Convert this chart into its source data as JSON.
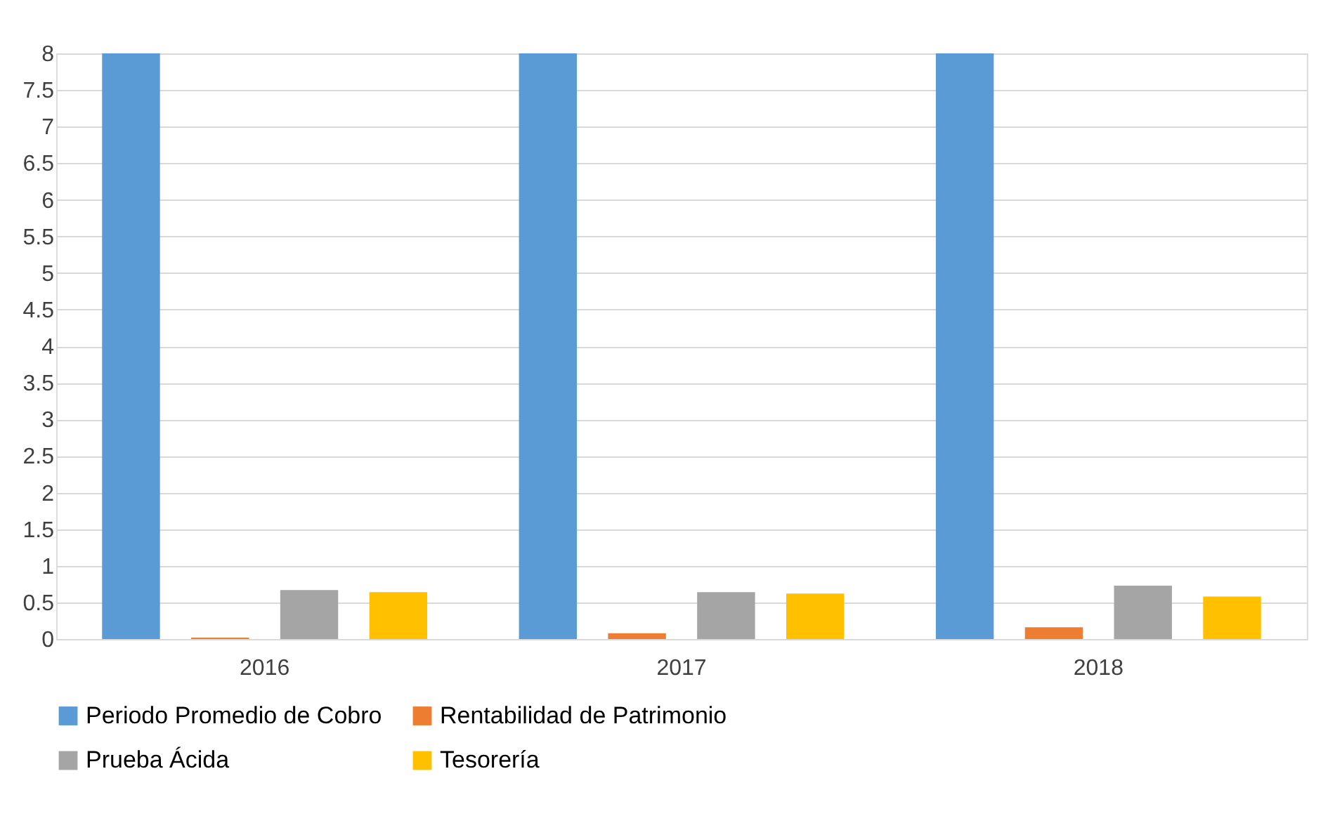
{
  "chart_data": {
    "type": "bar",
    "categories": [
      "2016",
      "2017",
      "2018"
    ],
    "series": [
      {
        "name": "Periodo Promedio de Cobro",
        "color": "#5b9bd5",
        "values": [
          8,
          8,
          8
        ]
      },
      {
        "name": "Rentabilidad de Patrimonio",
        "color": "#ed7d31",
        "values": [
          0.02,
          0.08,
          0.16
        ]
      },
      {
        "name": "Prueba Ácida",
        "color": "#a5a5a5",
        "values": [
          0.67,
          0.64,
          0.73
        ]
      },
      {
        "name": "Tesorería",
        "color": "#ffc000",
        "values": [
          0.64,
          0.62,
          0.58
        ]
      }
    ],
    "ylim": [
      0,
      8
    ],
    "yticks": [
      0,
      0.5,
      1,
      1.5,
      2,
      2.5,
      3,
      3.5,
      4,
      4.5,
      5,
      5.5,
      6,
      6.5,
      7,
      7.5,
      8
    ],
    "grid": "y",
    "legend": "bottom"
  }
}
